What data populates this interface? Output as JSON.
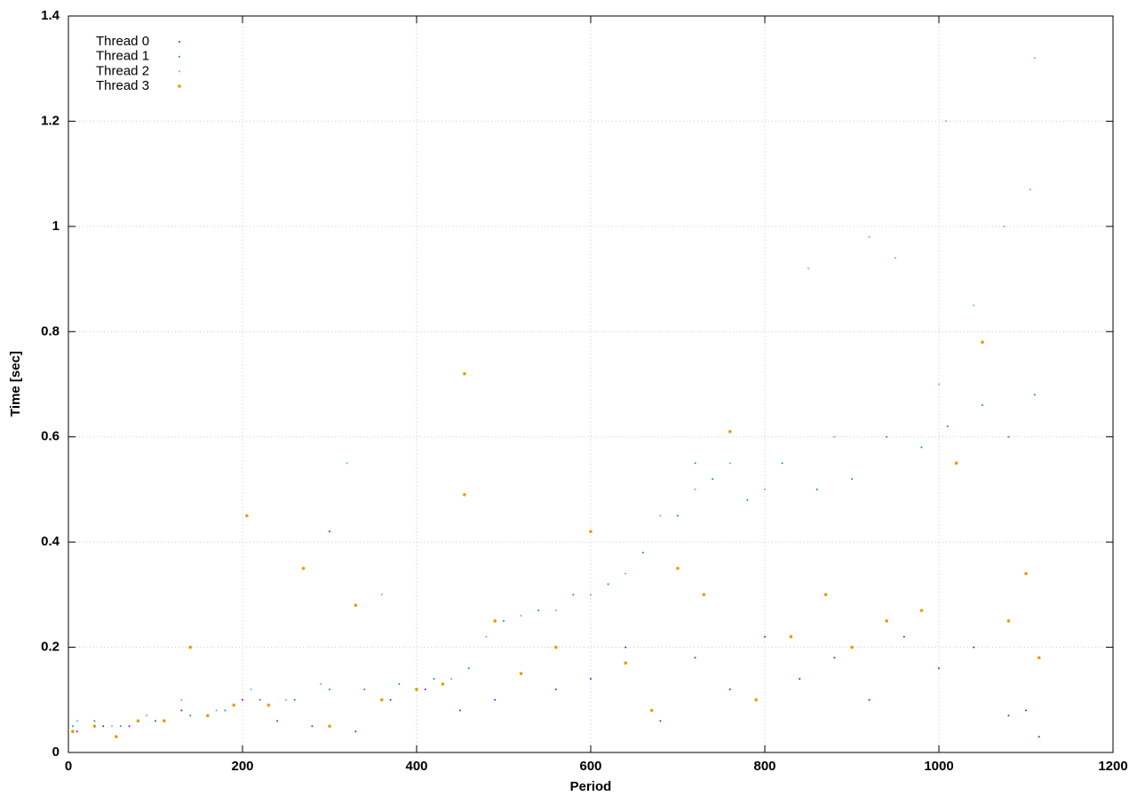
{
  "chart_data": {
    "type": "scatter",
    "x_label": "Period",
    "y_label": "Time [sec]",
    "xlim": [
      0,
      1200
    ],
    "xticks": [
      0,
      200,
      400,
      600,
      800,
      1000,
      1200
    ],
    "ylim": [
      0,
      1.4
    ],
    "yticks": [
      0,
      0.2,
      0.4,
      0.6,
      0.8,
      1,
      1.2,
      1.4
    ],
    "grid": true,
    "legend": "top-left",
    "series": [
      {
        "name": "Thread 0",
        "color": "#9400d3",
        "x": [
          10,
          40,
          70,
          100,
          130,
          160,
          200,
          240,
          280,
          300,
          330,
          370,
          410,
          450,
          490,
          520,
          560,
          600,
          640,
          680,
          720,
          760,
          800,
          840,
          880,
          920,
          960,
          1000,
          1040,
          1080,
          1100,
          1115
        ],
        "values": [
          0.04,
          0.05,
          0.05,
          0.06,
          0.08,
          0.07,
          0.1,
          0.06,
          0.05,
          0.42,
          0.04,
          0.1,
          0.12,
          0.08,
          0.1,
          0.15,
          0.12,
          0.14,
          0.2,
          0.06,
          0.18,
          0.12,
          0.22,
          0.14,
          0.18,
          0.1,
          0.22,
          0.16,
          0.2,
          0.07,
          0.08,
          0.03
        ]
      },
      {
        "name": "Thread 1",
        "color": "#009e73",
        "x": [
          5,
          30,
          60,
          100,
          140,
          180,
          220,
          260,
          300,
          340,
          380,
          420,
          460,
          500,
          540,
          580,
          620,
          660,
          700,
          720,
          740,
          780,
          820,
          860,
          900,
          940,
          980,
          1010,
          1050,
          1080,
          1110
        ],
        "values": [
          0.05,
          0.06,
          0.05,
          0.06,
          0.07,
          0.08,
          0.1,
          0.1,
          0.12,
          0.12,
          0.13,
          0.14,
          0.16,
          0.25,
          0.27,
          0.3,
          0.32,
          0.38,
          0.45,
          0.55,
          0.52,
          0.48,
          0.55,
          0.5,
          0.52,
          0.6,
          0.58,
          0.62,
          0.66,
          0.6,
          0.68
        ]
      },
      {
        "name": "Thread 2",
        "color": "#56b4e9",
        "x": [
          10,
          50,
          90,
          130,
          170,
          210,
          250,
          290,
          320,
          360,
          400,
          440,
          480,
          520,
          560,
          600,
          640,
          680,
          720,
          760,
          800,
          850,
          880,
          920,
          950,
          1000,
          1008,
          1040,
          1075,
          1105,
          1110
        ],
        "values": [
          0.06,
          0.05,
          0.07,
          0.1,
          0.08,
          0.12,
          0.1,
          0.13,
          0.55,
          0.3,
          0.12,
          0.14,
          0.22,
          0.26,
          0.27,
          0.3,
          0.34,
          0.45,
          0.5,
          0.55,
          0.5,
          0.92,
          0.6,
          0.98,
          0.94,
          0.7,
          1.2,
          0.85,
          1.0,
          1.07,
          1.32
        ]
      },
      {
        "name": "Thread 3",
        "color": "#e69f00",
        "x": [
          5,
          30,
          55,
          80,
          110,
          140,
          160,
          190,
          205,
          230,
          270,
          300,
          330,
          360,
          400,
          430,
          455,
          455,
          490,
          520,
          560,
          600,
          640,
          670,
          700,
          730,
          760,
          790,
          830,
          870,
          900,
          940,
          980,
          1020,
          1050,
          1080,
          1100,
          1115
        ],
        "values": [
          0.04,
          0.05,
          0.03,
          0.06,
          0.06,
          0.2,
          0.07,
          0.09,
          0.45,
          0.09,
          0.35,
          0.05,
          0.28,
          0.1,
          0.12,
          0.13,
          0.72,
          0.49,
          0.25,
          0.15,
          0.2,
          0.42,
          0.17,
          0.08,
          0.35,
          0.3,
          0.61,
          0.1,
          0.22,
          0.3,
          0.2,
          0.25,
          0.27,
          0.55,
          0.78,
          0.25,
          0.34,
          0.18
        ]
      }
    ]
  }
}
